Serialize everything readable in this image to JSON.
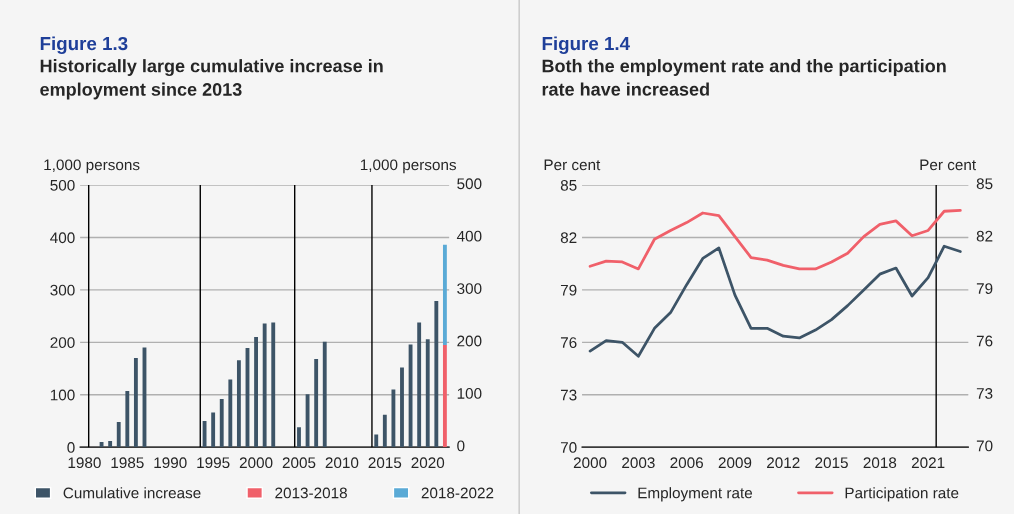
{
  "chart_data": [
    {
      "type": "bar",
      "title": "Figure 1.3",
      "subtitle": "Historically large cumulative increase in employment since 2013",
      "ylabel": "1,000 persons",
      "y2label": "1,000 persons",
      "series": [
        {
          "name": "Cumulative increase",
          "color": "#3d5467",
          "x": [
            1982,
            1983,
            1984,
            1985,
            1986,
            1987,
            1994,
            1995,
            1996,
            1997,
            1998,
            1999,
            2000,
            2001,
            2002,
            2005,
            2006,
            2007,
            2008,
            2014,
            2015,
            2016,
            2017,
            2018,
            2019,
            2020,
            2021
          ],
          "values": [
            10,
            12,
            48,
            107,
            170,
            190,
            50,
            66,
            92,
            129,
            166,
            189,
            210,
            236,
            238,
            38,
            101,
            168,
            201,
            24,
            62,
            110,
            152,
            196,
            238,
            206,
            279
          ]
        },
        {
          "name": "2013-2018",
          "color": "#f0606a",
          "x": [
            2022
          ],
          "values": [
            195
          ]
        },
        {
          "name": "2018-2022",
          "color": "#5aaad6",
          "x": [
            2022
          ],
          "values": [
            191
          ],
          "base": [
            195
          ]
        }
      ],
      "xlim": [
        1979.5,
        2022.5
      ],
      "xticks": [
        1980,
        1985,
        1990,
        1995,
        2000,
        2005,
        2010,
        2015,
        2020
      ],
      "ylim": [
        0,
        500
      ],
      "yticks": [
        0,
        100,
        200,
        300,
        400,
        500
      ],
      "y2lim": [
        0,
        500
      ],
      "y2ticks": [
        0,
        100,
        200,
        300,
        400,
        500
      ],
      "ref_lines": [
        {
          "axis": "x",
          "value": 1980.5,
          "color": "#000000"
        },
        {
          "axis": "x",
          "value": 1993.5,
          "color": "#000000"
        },
        {
          "axis": "x",
          "value": 2004.5,
          "color": "#000000"
        },
        {
          "axis": "x",
          "value": 2013.5,
          "color": "#000000"
        }
      ],
      "grid": "y",
      "legend": "bottom"
    },
    {
      "type": "line",
      "title": "Figure 1.4",
      "subtitle": "Both the employment rate and the participation rate have increased",
      "ylabel": "Per cent",
      "y2label": "Per cent",
      "x": [
        2000,
        2001,
        2002,
        2003,
        2004,
        2005,
        2006,
        2007,
        2008,
        2009,
        2010,
        2011,
        2012,
        2013,
        2014,
        2015,
        2016,
        2017,
        2018,
        2019,
        2020,
        2021,
        2022,
        2023
      ],
      "series": [
        {
          "name": "Employment rate",
          "color": "#3d5467",
          "values": [
            75.5,
            76.1,
            76.0,
            75.2,
            76.8,
            77.7,
            79.3,
            80.8,
            81.4,
            78.7,
            76.8,
            76.8,
            76.35,
            76.25,
            76.7,
            77.3,
            78.1,
            79.0,
            79.9,
            80.25,
            78.65,
            79.7,
            81.5,
            81.2
          ]
        },
        {
          "name": "Participation rate",
          "color": "#f0606a",
          "values": [
            80.35,
            80.65,
            80.6,
            80.2,
            81.9,
            82.4,
            82.85,
            83.4,
            83.25,
            82.05,
            80.85,
            80.7,
            80.4,
            80.2,
            80.2,
            80.6,
            81.1,
            82.05,
            82.75,
            82.95,
            82.1,
            82.4,
            83.5,
            83.55
          ]
        }
      ],
      "xlim": [
        1999.5,
        2023.5
      ],
      "xticks": [
        2000,
        2003,
        2006,
        2009,
        2012,
        2015,
        2018,
        2021
      ],
      "ylim": [
        70,
        85
      ],
      "yticks": [
        70,
        73,
        76,
        79,
        82,
        85
      ],
      "y2lim": [
        70,
        85
      ],
      "y2ticks": [
        70,
        73,
        76,
        79,
        82,
        85
      ],
      "ref_lines": [
        {
          "axis": "x",
          "value": 2021.5,
          "color": "#000000"
        }
      ],
      "grid": "y",
      "legend": "bottom",
      "line_style": "solid",
      "marker": "none"
    }
  ]
}
